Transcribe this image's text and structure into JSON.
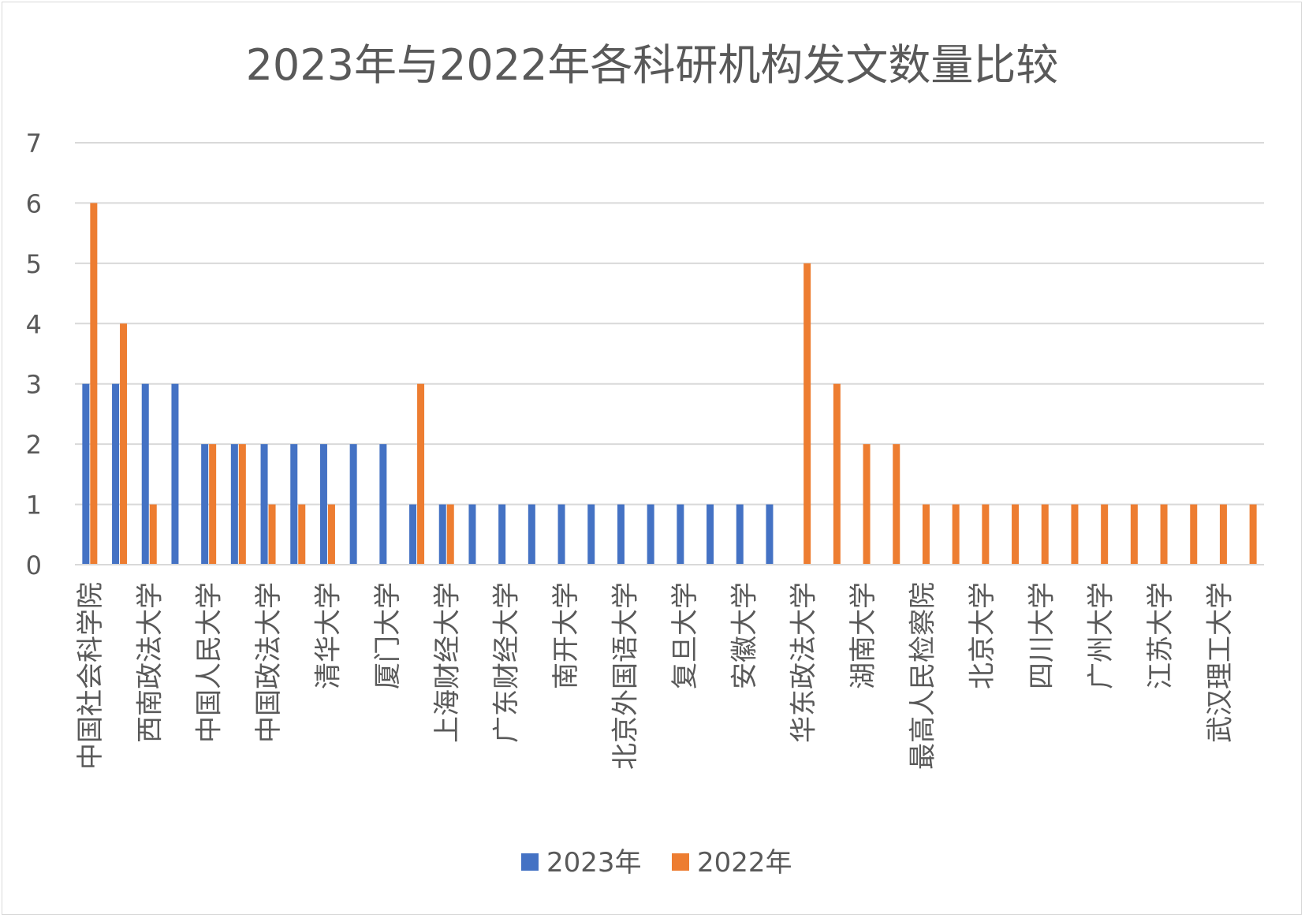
{
  "chart_data": {
    "type": "bar",
    "title": "2023年与2022年各科研机构发文数量比较",
    "xlabel": "",
    "ylabel": "",
    "ylim": [
      0,
      7
    ],
    "yticks": [
      "0",
      "1",
      "2",
      "3",
      "4",
      "5",
      "6",
      "7"
    ],
    "grid": true,
    "legend_position": "bottom",
    "categories": [
      "中国社会科学院",
      "",
      "西南政法大学",
      "",
      "中国人民大学",
      "",
      "中国政法大学",
      "",
      "清华大学",
      "",
      "厦门大学",
      "",
      "上海财经大学",
      "",
      "广东财经大学",
      "",
      "南开大学",
      "",
      "北京外国语大学",
      "",
      "复旦大学",
      "",
      "安徽大学",
      "",
      "华东政法大学",
      "",
      "湖南大学",
      "",
      "最高人民检察院",
      "",
      "北京大学",
      "",
      "四川大学",
      "",
      "广州大学",
      "",
      "江苏大学",
      "",
      "武汉理工大学",
      ""
    ],
    "series": [
      {
        "name": "2023年",
        "color": "#4472c4",
        "values": [
          3,
          3,
          3,
          3,
          2,
          2,
          2,
          2,
          2,
          2,
          2,
          1,
          1,
          1,
          1,
          1,
          1,
          1,
          1,
          1,
          1,
          1,
          1,
          1,
          0,
          0,
          0,
          0,
          0,
          0,
          0,
          0,
          0,
          0,
          0,
          0,
          0,
          0,
          0,
          0
        ]
      },
      {
        "name": "2022年",
        "color": "#ed7d31",
        "values": [
          6,
          4,
          1,
          0,
          2,
          2,
          1,
          1,
          1,
          0,
          0,
          3,
          1,
          0,
          0,
          0,
          0,
          0,
          0,
          0,
          0,
          0,
          0,
          0,
          5,
          3,
          2,
          2,
          1,
          1,
          1,
          1,
          1,
          1,
          1,
          1,
          1,
          1,
          1,
          1
        ]
      }
    ]
  }
}
